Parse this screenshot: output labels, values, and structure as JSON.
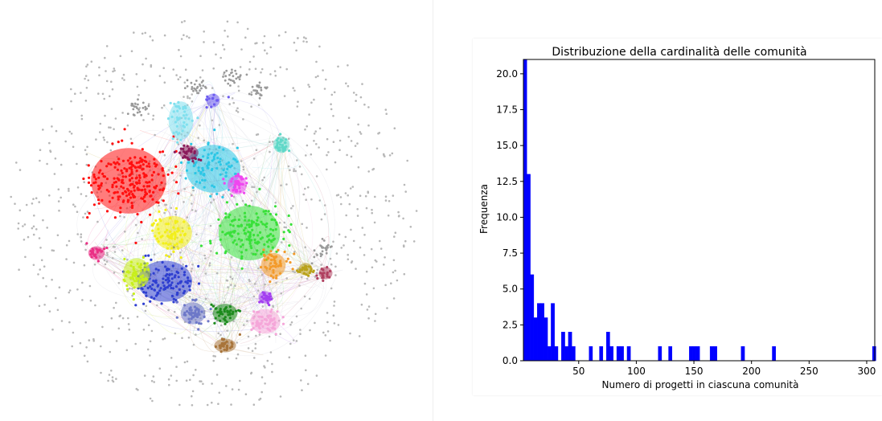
{
  "network": {
    "background_nodes": "#b8b8b8",
    "communities": [
      {
        "name": "red",
        "color": "#ff1010",
        "size": 230
      },
      {
        "name": "cyan",
        "color": "#2cc7e6",
        "size": 80
      },
      {
        "name": "light-cyan",
        "color": "#7fe0ee",
        "size": 40
      },
      {
        "name": "green",
        "color": "#39e03a",
        "size": 150
      },
      {
        "name": "blue",
        "color": "#2f3fd0",
        "size": 120
      },
      {
        "name": "yellow",
        "color": "#f2ef1a",
        "size": 70
      },
      {
        "name": "lime",
        "color": "#c8ef1c",
        "size": 60
      },
      {
        "name": "pink",
        "color": "#f5a6d9",
        "size": 60
      },
      {
        "name": "magenta",
        "color": "#ef46ef",
        "size": 40
      },
      {
        "name": "orange",
        "color": "#f39a2a",
        "size": 50
      },
      {
        "name": "dark-magenta",
        "color": "#8a1a5a",
        "size": 30
      },
      {
        "name": "dark-green",
        "color": "#1c8a1c",
        "size": 40
      },
      {
        "name": "slate-blue",
        "color": "#6d78c8",
        "size": 50
      },
      {
        "name": "teal",
        "color": "#5fd8c8",
        "size": 30
      },
      {
        "name": "olive",
        "color": "#b9a21a",
        "size": 25
      },
      {
        "name": "brown",
        "color": "#a8743a",
        "size": 30
      },
      {
        "name": "purple",
        "color": "#a33ef0",
        "size": 25
      },
      {
        "name": "violet",
        "color": "#6d5cf0",
        "size": 15
      },
      {
        "name": "hot-pink",
        "color": "#ea2f85",
        "size": 25
      },
      {
        "name": "maroon",
        "color": "#b04060",
        "size": 20
      }
    ]
  },
  "chart_data": {
    "type": "bar",
    "title": "Distribuzione della cardinalità delle comunità",
    "xlabel": "Numero di progetti in ciascuna comunità",
    "ylabel": "Frequenza",
    "xlim": [
      2,
      307
    ],
    "ylim": [
      0,
      21
    ],
    "xticks": [
      50,
      100,
      150,
      200,
      250,
      300
    ],
    "yticks": [
      0.0,
      2.5,
      5.0,
      7.5,
      10.0,
      12.5,
      15.0,
      17.5,
      20.0
    ],
    "bar_color": "#0000ff",
    "bin_width": 3,
    "bins": [
      {
        "x": 2,
        "value": 21
      },
      {
        "x": 5,
        "value": 13
      },
      {
        "x": 8,
        "value": 6
      },
      {
        "x": 11,
        "value": 3
      },
      {
        "x": 14,
        "value": 4
      },
      {
        "x": 17,
        "value": 4
      },
      {
        "x": 20,
        "value": 3
      },
      {
        "x": 23,
        "value": 1
      },
      {
        "x": 26,
        "value": 4
      },
      {
        "x": 29,
        "value": 1
      },
      {
        "x": 32,
        "value": 0
      },
      {
        "x": 35,
        "value": 2
      },
      {
        "x": 38,
        "value": 1
      },
      {
        "x": 41,
        "value": 2
      },
      {
        "x": 44,
        "value": 1
      },
      {
        "x": 59,
        "value": 1
      },
      {
        "x": 68,
        "value": 1
      },
      {
        "x": 74,
        "value": 2
      },
      {
        "x": 77,
        "value": 1
      },
      {
        "x": 83,
        "value": 1
      },
      {
        "x": 86,
        "value": 1
      },
      {
        "x": 92,
        "value": 1
      },
      {
        "x": 119,
        "value": 1
      },
      {
        "x": 128,
        "value": 1
      },
      {
        "x": 146,
        "value": 1
      },
      {
        "x": 149,
        "value": 1
      },
      {
        "x": 152,
        "value": 1
      },
      {
        "x": 164,
        "value": 1
      },
      {
        "x": 167,
        "value": 1
      },
      {
        "x": 191,
        "value": 1
      },
      {
        "x": 218,
        "value": 1
      },
      {
        "x": 305,
        "value": 1
      }
    ]
  }
}
